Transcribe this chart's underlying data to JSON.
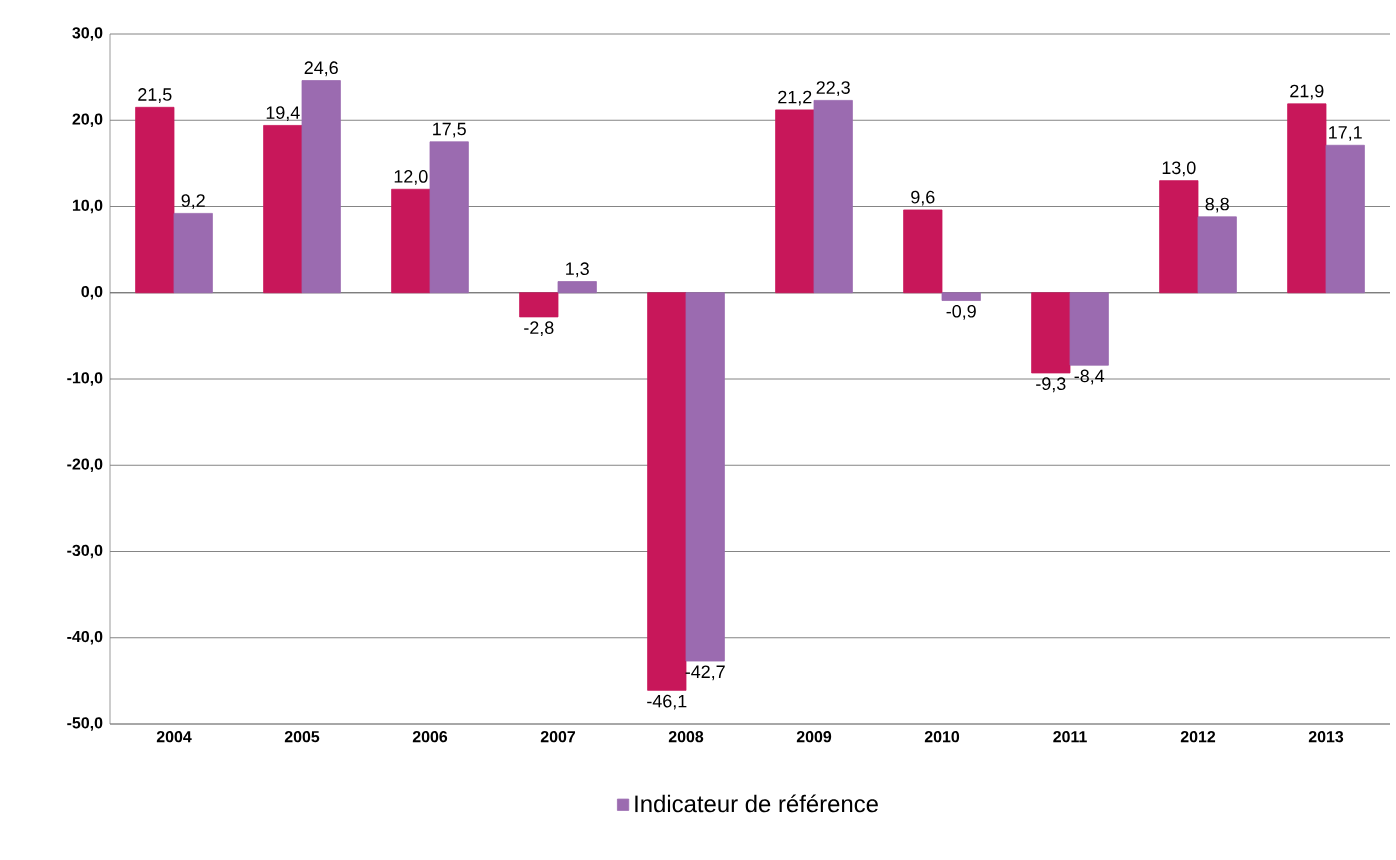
{
  "chart_data": {
    "type": "bar",
    "categories": [
      "2004",
      "2005",
      "2006",
      "2007",
      "2008",
      "2009",
      "2010",
      "2011",
      "2012",
      "2013"
    ],
    "series": [
      {
        "color": "#c8175a",
        "values": [
          21.5,
          19.4,
          12.0,
          -2.8,
          -46.1,
          21.2,
          9.6,
          -9.3,
          13.0,
          21.9
        ],
        "value_labels": [
          "21,5",
          "19,4",
          "12,0",
          "-2,8",
          "-46,1",
          "21,2",
          "9,6",
          "-9,3",
          "13,0",
          "21,9"
        ]
      },
      {
        "name": "Indicateur de référence",
        "color": "#9b6bb0",
        "values": [
          9.2,
          24.6,
          17.5,
          1.3,
          -42.7,
          22.3,
          -0.9,
          -8.4,
          8.8,
          17.1
        ],
        "value_labels": [
          "9,2",
          "24,6",
          "17,5",
          "1,3",
          "-42,7",
          "22,3",
          "-0,9",
          "-8,4",
          "8,8",
          "17,1"
        ]
      }
    ],
    "ylim": [
      -50,
      30
    ],
    "yticks": [
      {
        "value": -50,
        "label": "-50,0"
      },
      {
        "value": -40,
        "label": "-40,0"
      },
      {
        "value": -30,
        "label": "-30,0"
      },
      {
        "value": -20,
        "label": "-20,0"
      },
      {
        "value": -10,
        "label": "-10,0"
      },
      {
        "value": 0,
        "label": "0,0"
      },
      {
        "value": 10,
        "label": "10,0"
      },
      {
        "value": 20,
        "label": "20,0"
      },
      {
        "value": 30,
        "label": "30,0"
      }
    ],
    "grid": "y",
    "legend": "bottom"
  }
}
